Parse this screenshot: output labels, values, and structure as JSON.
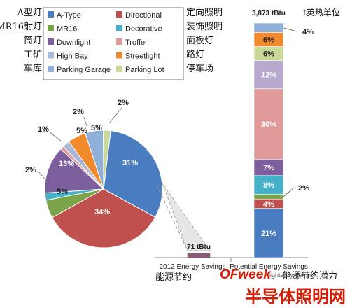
{
  "chart_data": [
    {
      "type": "pie",
      "unit": "%",
      "slices": [
        {
          "name": "A-Type",
          "value": 31,
          "label": "31%",
          "color": "#4a7cc0"
        },
        {
          "name": "Directional",
          "value": 34,
          "label": "34%",
          "color": "#c0504d"
        },
        {
          "name": "MR16",
          "value": 5,
          "label": "5%",
          "color": "#7aa34a"
        },
        {
          "name": "Decorative",
          "value": 2,
          "label": "2%",
          "color": "#46b0c9"
        },
        {
          "name": "Downlight",
          "value": 13,
          "label": "13%",
          "color": "#7e5f9e"
        },
        {
          "name": "Troffer",
          "value": 1,
          "label": "1%",
          "color": "#e09a9a"
        },
        {
          "name": "High Bay",
          "value": 2,
          "label": "2%",
          "color": "#a9b8d8"
        },
        {
          "name": "Streetlight",
          "value": 5,
          "label": "5%",
          "color": "#f08a2c"
        },
        {
          "name": "Parking Garage",
          "value": 5,
          "label": "5%",
          "color": "#8fb0d8"
        },
        {
          "name": "Parking Lot",
          "value": 2,
          "label": "2%",
          "color": "#c8d99a"
        }
      ]
    },
    {
      "type": "bar",
      "stacked": true,
      "categories": [
        "2012 Energy Savings",
        "Potential Energy Savings"
      ],
      "totals": [
        "71 tBtu",
        "3,873 tBtu"
      ],
      "total_values": [
        71,
        3873
      ],
      "unit": "tBtu",
      "stack": [
        {
          "name": "A-Type",
          "value": 21,
          "label": "21%",
          "color": "#4a7cc0"
        },
        {
          "name": "Directional",
          "value": 4,
          "label": "4%",
          "color": "#c0504d"
        },
        {
          "name": "MR16",
          "value": 2,
          "label": "2%",
          "color": "#7aa34a"
        },
        {
          "name": "Decorative",
          "value": 8,
          "label": "8%",
          "color": "#46b0c9"
        },
        {
          "name": "Downlight",
          "value": 7,
          "label": "7%",
          "color": "#7e5f9e"
        },
        {
          "name": "Troffer",
          "value": 30,
          "label": "30%",
          "color": "#e09a9a"
        },
        {
          "name": "High Bay",
          "value": 12,
          "label": "12%",
          "color": "#b8a9cf"
        },
        {
          "name": "Parking Lot",
          "value": 6,
          "label": "6%",
          "color": "#c8d99a"
        },
        {
          "name": "Streetlight",
          "value": 6,
          "label": "6%",
          "color": "#f08a2c"
        },
        {
          "name": "Parking Garage",
          "value": 4,
          "label": "4%",
          "color": "#8fb0d8"
        }
      ]
    }
  ],
  "legend": [
    {
      "name": "A-Type",
      "color": "#4a7cc0"
    },
    {
      "name": "Directional",
      "color": "#c0504d"
    },
    {
      "name": "MR16",
      "color": "#7aa34a"
    },
    {
      "name": "Decorative",
      "color": "#46b0c9"
    },
    {
      "name": "Downlight",
      "color": "#7e5f9e"
    },
    {
      "name": "Troffer",
      "color": "#e09a9a"
    },
    {
      "name": "High Bay",
      "color": "#a9b8d8"
    },
    {
      "name": "Streetlight",
      "color": "#f08a2c"
    },
    {
      "name": "Parking Garage",
      "color": "#8fb0d8"
    },
    {
      "name": "Parking Lot",
      "color": "#c8d99a"
    }
  ],
  "legend_cn_left": [
    "A型灯",
    "MR16射灯",
    "筒灯",
    "工矿",
    "车库"
  ],
  "legend_cn_right": [
    "定向照明",
    "装饰照明",
    "面板灯",
    "路灯",
    "停车场"
  ],
  "unit_label_cn": "t英热单位",
  "axis_label_cn": "能源节约",
  "potential_label_cn": "能源节约潜力",
  "watermark": {
    "logo": "OFweek",
    "logo_sub": "lights.ofweek.com",
    "site_cn": "半导体照明网"
  }
}
